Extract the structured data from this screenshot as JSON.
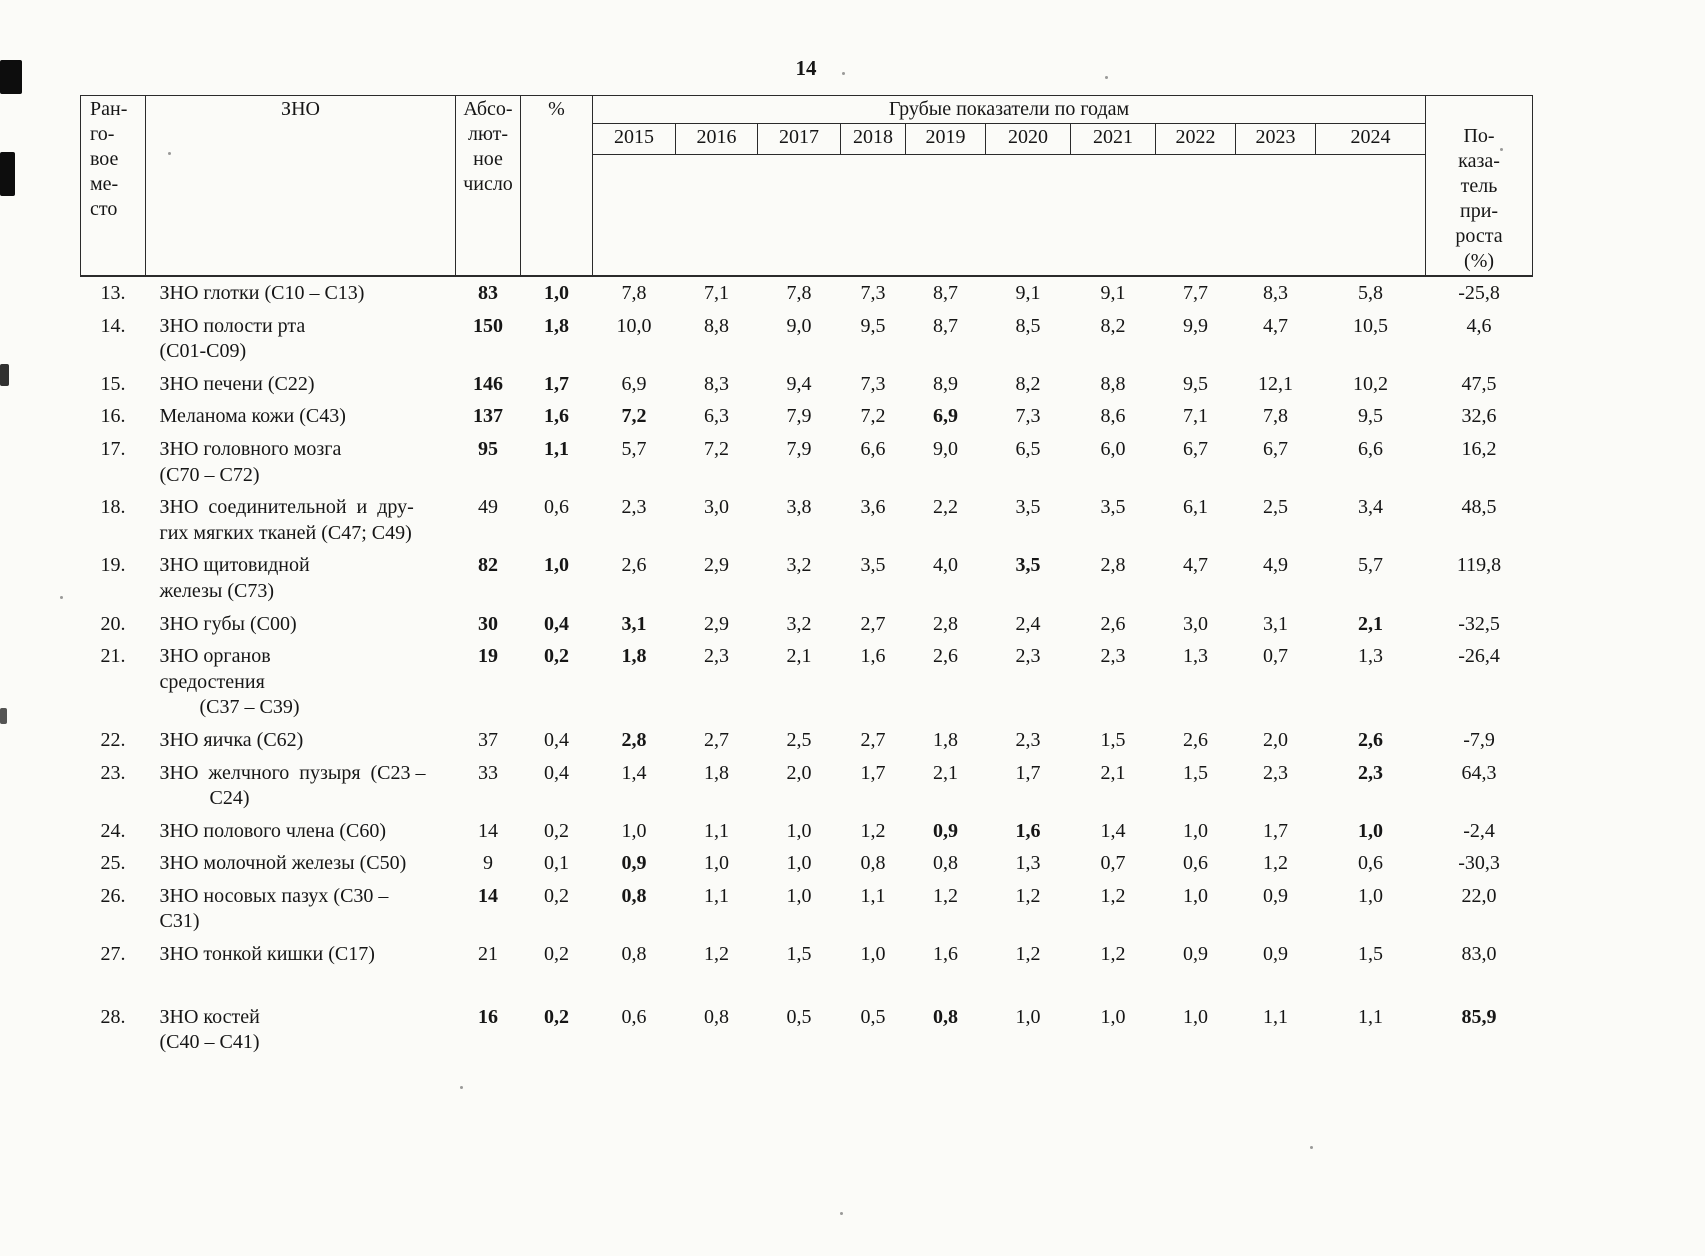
{
  "page": {
    "number": "14"
  },
  "table": {
    "headers": {
      "rank": "Ран-\nго-\nвое\nме-\nсто",
      "zno": "ЗНО",
      "abs": "Абсо-\nлют-\nное\nчисло",
      "pct": "%",
      "years_group": "Грубые показатели по годам",
      "growth": "По-\nказа-\nтель\nпри-\nроста\n(%)"
    },
    "years": [
      "2015",
      "2016",
      "2017",
      "2018",
      "2019",
      "2020",
      "2021",
      "2022",
      "2023",
      "2024"
    ],
    "rows": [
      {
        "rank": "13.",
        "name": "ЗНО глотки (С10 – С13)",
        "abs": "83",
        "pct": "1,0",
        "years": [
          "7,8",
          "7,1",
          "7,8",
          "7,3",
          "8,7",
          "9,1",
          "9,1",
          "7,7",
          "8,3",
          "5,8"
        ],
        "growth": "-25,8",
        "b": [
          2,
          3
        ]
      },
      {
        "rank": "14.",
        "name": "ЗНО полости рта\n(С01-С09)",
        "abs": "150",
        "pct": "1,8",
        "years": [
          "10,0",
          "8,8",
          "9,0",
          "9,5",
          "8,7",
          "8,5",
          "8,2",
          "9,9",
          "4,7",
          "10,5"
        ],
        "growth": "4,6",
        "b": [
          2,
          3
        ]
      },
      {
        "rank": "15.",
        "name": "ЗНО печени (С22)",
        "abs": "146",
        "pct": "1,7",
        "years": [
          "6,9",
          "8,3",
          "9,4",
          "7,3",
          "8,9",
          "8,2",
          "8,8",
          "9,5",
          "12,1",
          "10,2"
        ],
        "growth": "47,5",
        "b": [
          2,
          3
        ]
      },
      {
        "rank": "16.",
        "name": "Меланома кожи (С43)",
        "abs": "137",
        "pct": "1,6",
        "years": [
          "7,2",
          "6,3",
          "7,9",
          "7,2",
          "6,9",
          "7,3",
          "8,6",
          "7,1",
          "7,8",
          "9,5"
        ],
        "growth": "32,6",
        "b": [
          2,
          3,
          4,
          8
        ]
      },
      {
        "rank": "17.",
        "name": "ЗНО головного мозга\n(С70 – С72)",
        "abs": "95",
        "pct": "1,1",
        "years": [
          "5,7",
          "7,2",
          "7,9",
          "6,6",
          "9,0",
          "6,5",
          "6,0",
          "6,7",
          "6,7",
          "6,6"
        ],
        "growth": "16,2",
        "b": [
          2,
          3
        ]
      },
      {
        "rank": "18.",
        "name": "ЗНО  соединительной  и  дру-\nгих мягких тканей (С47; С49)",
        "abs": "49",
        "pct": "0,6",
        "years": [
          "2,3",
          "3,0",
          "3,8",
          "3,6",
          "2,2",
          "3,5",
          "3,5",
          "6,1",
          "2,5",
          "3,4"
        ],
        "growth": "48,5",
        "b": []
      },
      {
        "rank": "19.",
        "name": "ЗНО щитовидной\nжелезы (С73)",
        "abs": "82",
        "pct": "1,0",
        "years": [
          "2,6",
          "2,9",
          "3,2",
          "3,5",
          "4,0",
          "3,5",
          "2,8",
          "4,7",
          "4,9",
          "5,7"
        ],
        "growth": "119,8",
        "b": [
          2,
          3,
          9
        ]
      },
      {
        "rank": "20.",
        "name": "ЗНО губы (С00)",
        "abs": "30",
        "pct": "0,4",
        "years": [
          "3,1",
          "2,9",
          "3,2",
          "2,7",
          "2,8",
          "2,4",
          "2,6",
          "3,0",
          "3,1",
          "2,1"
        ],
        "growth": "-32,5",
        "b": [
          2,
          3,
          4,
          13
        ]
      },
      {
        "rank": "21.",
        "name": "ЗНО органов\nсредостения\n        (С37 – С39)",
        "abs": "19",
        "pct": "0,2",
        "years": [
          "1,8",
          "2,3",
          "2,1",
          "1,6",
          "2,6",
          "2,3",
          "2,3",
          "1,3",
          "0,7",
          "1,3"
        ],
        "growth": "-26,4",
        "b": [
          2,
          3,
          4
        ]
      },
      {
        "rank": "22.",
        "name": "ЗНО яичка (С62)",
        "abs": "37",
        "pct": "0,4",
        "years": [
          "2,8",
          "2,7",
          "2,5",
          "2,7",
          "1,8",
          "2,3",
          "1,5",
          "2,6",
          "2,0",
          "2,6"
        ],
        "growth": "-7,9",
        "b": [
          4,
          13
        ]
      },
      {
        "rank": "23.",
        "name": "ЗНО  желчного  пузыря  (С23 –\n          С24)",
        "abs": "33",
        "pct": "0,4",
        "years": [
          "1,4",
          "1,8",
          "2,0",
          "1,7",
          "2,1",
          "1,7",
          "2,1",
          "1,5",
          "2,3",
          "2,3"
        ],
        "growth": "64,3",
        "b": [
          13
        ]
      },
      {
        "rank": "24.",
        "name": "ЗНО полового члена (С60)",
        "abs": "14",
        "pct": "0,2",
        "years": [
          "1,0",
          "1,1",
          "1,0",
          "1,2",
          "0,9",
          "1,6",
          "1,4",
          "1,0",
          "1,7",
          "1,0"
        ],
        "growth": "-2,4",
        "b": [
          8,
          9,
          13
        ]
      },
      {
        "rank": "25.",
        "name": "ЗНО молочной железы (С50)",
        "abs": "9",
        "pct": "0,1",
        "years": [
          "0,9",
          "1,0",
          "1,0",
          "0,8",
          "0,8",
          "1,3",
          "0,7",
          "0,6",
          "1,2",
          "0,6"
        ],
        "growth": "-30,3",
        "b": [
          4
        ]
      },
      {
        "rank": "26.",
        "name": "ЗНО носовых пазух (С30 –\nС31)",
        "abs": "14",
        "pct": "0,2",
        "years": [
          "0,8",
          "1,1",
          "1,0",
          "1,1",
          "1,2",
          "1,2",
          "1,2",
          "1,0",
          "0,9",
          "1,0"
        ],
        "growth": "22,0",
        "b": [
          2,
          4
        ]
      },
      {
        "rank": "27.",
        "name": "ЗНО тонкой кишки (С17)",
        "abs": "21",
        "pct": "0,2",
        "years": [
          "0,8",
          "1,2",
          "1,5",
          "1,0",
          "1,6",
          "1,2",
          "1,2",
          "0,9",
          "0,9",
          "1,5"
        ],
        "growth": "83,0",
        "b": []
      },
      {
        "rank": "28.",
        "name": "ЗНО костей\n(С40 – С41)",
        "abs": "16",
        "pct": "0,2",
        "years": [
          "0,6",
          "0,8",
          "0,5",
          "0,5",
          "0,8",
          "1,0",
          "1,0",
          "1,0",
          "1,1",
          "1,1"
        ],
        "growth": "85,9",
        "b": [
          2,
          3,
          8,
          14
        ],
        "gap": true
      }
    ]
  }
}
